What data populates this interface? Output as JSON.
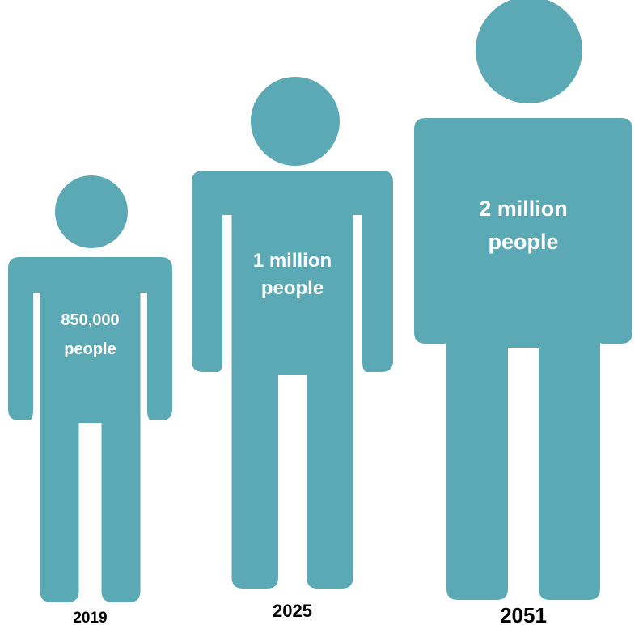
{
  "chart_data": {
    "type": "pictogram",
    "color": "#5aa9b4",
    "categories": [
      "2019",
      "2025",
      "2051"
    ],
    "values": [
      850000,
      1000000,
      2000000
    ],
    "labels": [
      [
        "850,000",
        "people"
      ],
      [
        "1 million",
        "people"
      ],
      [
        "2 million",
        "people"
      ]
    ]
  }
}
